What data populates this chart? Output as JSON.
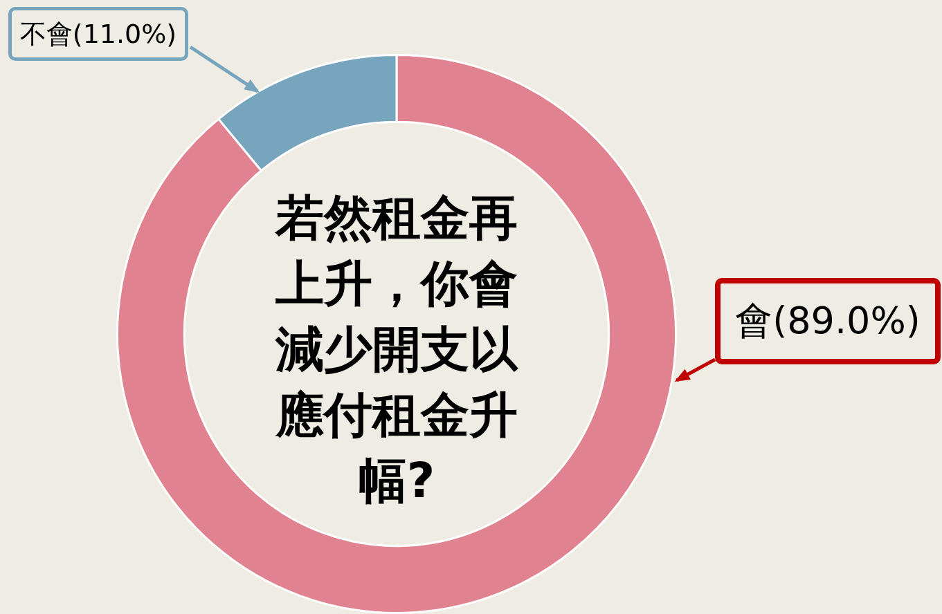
{
  "chart_data": {
    "type": "donut",
    "title": "若然租金再上升，你會減少開支以應付租金升幅?",
    "categories": [
      "會",
      "不會"
    ],
    "values": [
      89.0,
      11.0
    ],
    "colors": [
      "#e0828f",
      "#77a5be"
    ],
    "value_labels": [
      "(89.0%)",
      "(11.0%)"
    ]
  }
}
